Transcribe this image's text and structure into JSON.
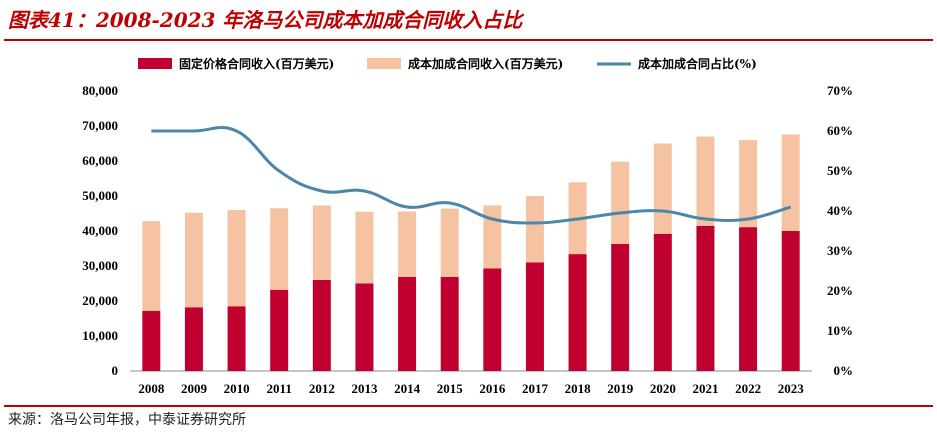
{
  "header": {
    "title": "图表41：2008-2023 年洛马公司成本加成合同收入占比"
  },
  "footer": {
    "source": "来源：洛马公司年报，中泰证券研究所"
  },
  "colors": {
    "fixed": "#c0002e",
    "cost": "#f5c3a2",
    "line": "#4a87ab",
    "accent": "#c00000"
  },
  "chart_data": {
    "type": "bar",
    "stacked": true,
    "categories": [
      "2008",
      "2009",
      "2010",
      "2011",
      "2012",
      "2013",
      "2014",
      "2015",
      "2016",
      "2017",
      "2018",
      "2019",
      "2020",
      "2021",
      "2022",
      "2023"
    ],
    "series": [
      {
        "name": "固定价格合同收入(百万美元)",
        "type": "bar",
        "axis": "left",
        "values": [
          17200,
          18200,
          18500,
          23200,
          26000,
          25000,
          26900,
          26900,
          29300,
          31000,
          33400,
          36300,
          39200,
          41500,
          41100,
          40000
        ]
      },
      {
        "name": "成本加成合同收入(百万美元)",
        "type": "bar",
        "axis": "left",
        "values": [
          25600,
          27000,
          27500,
          23300,
          21300,
          20500,
          18700,
          19500,
          18000,
          19000,
          20500,
          23500,
          25800,
          25500,
          24900,
          27600
        ]
      },
      {
        "name": "成本加成合同占比(%)",
        "type": "line",
        "axis": "right",
        "values": [
          60,
          60,
          60,
          50,
          45,
          45,
          41,
          42,
          38,
          37,
          38,
          39.5,
          40,
          38,
          38,
          41
        ]
      }
    ],
    "y_left": {
      "lim": [
        0,
        80000
      ],
      "ticks": [
        "0",
        "10,000",
        "20,000",
        "30,000",
        "40,000",
        "50,000",
        "60,000",
        "70,000",
        "80,000"
      ]
    },
    "y_right": {
      "lim": [
        0,
        70
      ],
      "ticks": [
        "0%",
        "10%",
        "20%",
        "30%",
        "40%",
        "50%",
        "60%",
        "70%"
      ]
    },
    "legend_position": "top",
    "grid": false
  }
}
